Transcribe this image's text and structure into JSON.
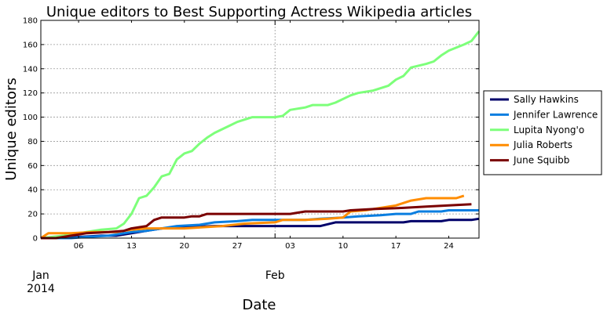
{
  "chart_data": {
    "type": "line",
    "title": "Unique editors to Best Supporting Actress Wikipedia articles",
    "xlabel": "Date",
    "ylabel": "Unique editors",
    "x_start": "2014-01-01",
    "x_end": "2014-02-28",
    "ylim": [
      0,
      180
    ],
    "yticks": [
      0,
      20,
      40,
      60,
      80,
      100,
      120,
      140,
      160,
      180
    ],
    "minor_xticks": [
      {
        "date": "2014-01-06",
        "label": "06"
      },
      {
        "date": "2014-01-13",
        "label": "13"
      },
      {
        "date": "2014-01-20",
        "label": "20"
      },
      {
        "date": "2014-01-27",
        "label": "27"
      },
      {
        "date": "2014-02-03",
        "label": "03"
      },
      {
        "date": "2014-02-10",
        "label": "10"
      },
      {
        "date": "2014-02-17",
        "label": "17"
      },
      {
        "date": "2014-02-24",
        "label": "24"
      }
    ],
    "major_xticks": [
      {
        "date": "2014-01-01",
        "label": "Jan",
        "sublabel": "2014"
      },
      {
        "date": "2014-02-01",
        "label": "Feb",
        "sublabel": ""
      }
    ],
    "grid": true,
    "legend_position": "right",
    "series": [
      {
        "name": "Sally Hawkins",
        "color": "#00006a",
        "points": [
          [
            "2014-01-01",
            0
          ],
          [
            "2014-01-04",
            0
          ],
          [
            "2014-01-06",
            1
          ],
          [
            "2014-01-09",
            2
          ],
          [
            "2014-01-11",
            2
          ],
          [
            "2014-01-13",
            4
          ],
          [
            "2014-01-15",
            6
          ],
          [
            "2014-01-17",
            8
          ],
          [
            "2014-01-20",
            9
          ],
          [
            "2014-01-24",
            10
          ],
          [
            "2014-01-28",
            10
          ],
          [
            "2014-02-01",
            10
          ],
          [
            "2014-02-04",
            10
          ],
          [
            "2014-02-07",
            10
          ],
          [
            "2014-02-09",
            13
          ],
          [
            "2014-02-12",
            13
          ],
          [
            "2014-02-15",
            13
          ],
          [
            "2014-02-18",
            13
          ],
          [
            "2014-02-19",
            14
          ],
          [
            "2014-02-23",
            14
          ],
          [
            "2014-02-24",
            15
          ],
          [
            "2014-02-27",
            15
          ],
          [
            "2014-02-28",
            16
          ]
        ]
      },
      {
        "name": "Jennifer Lawrence",
        "color": "#0a7ee0",
        "points": [
          [
            "2014-01-01",
            0
          ],
          [
            "2014-01-05",
            0
          ],
          [
            "2014-01-07",
            1
          ],
          [
            "2014-01-10",
            2
          ],
          [
            "2014-01-13",
            5
          ],
          [
            "2014-01-15",
            6
          ],
          [
            "2014-01-17",
            8
          ],
          [
            "2014-01-19",
            10
          ],
          [
            "2014-01-22",
            11
          ],
          [
            "2014-01-24",
            13
          ],
          [
            "2014-01-27",
            14
          ],
          [
            "2014-01-29",
            15
          ],
          [
            "2014-02-01",
            15
          ],
          [
            "2014-02-05",
            15
          ],
          [
            "2014-02-07",
            16
          ],
          [
            "2014-02-10",
            17
          ],
          [
            "2014-02-12",
            18
          ],
          [
            "2014-02-15",
            19
          ],
          [
            "2014-02-17",
            20
          ],
          [
            "2014-02-19",
            20
          ],
          [
            "2014-02-20",
            22
          ],
          [
            "2014-02-23",
            22
          ],
          [
            "2014-02-24",
            23
          ],
          [
            "2014-02-28",
            23
          ]
        ]
      },
      {
        "name": "Lupita Nyong'o",
        "color": "#7dff7a",
        "points": [
          [
            "2014-01-01",
            0
          ],
          [
            "2014-01-04",
            2
          ],
          [
            "2014-01-06",
            4
          ],
          [
            "2014-01-08",
            6
          ],
          [
            "2014-01-09",
            7
          ],
          [
            "2014-01-11",
            8
          ],
          [
            "2014-01-12",
            12
          ],
          [
            "2014-01-13",
            20
          ],
          [
            "2014-01-14",
            33
          ],
          [
            "2014-01-15",
            35
          ],
          [
            "2014-01-16",
            42
          ],
          [
            "2014-01-17",
            51
          ],
          [
            "2014-01-18",
            53
          ],
          [
            "2014-01-19",
            65
          ],
          [
            "2014-01-20",
            70
          ],
          [
            "2014-01-21",
            72
          ],
          [
            "2014-01-22",
            78
          ],
          [
            "2014-01-23",
            83
          ],
          [
            "2014-01-24",
            87
          ],
          [
            "2014-01-25",
            90
          ],
          [
            "2014-01-26",
            93
          ],
          [
            "2014-01-27",
            96
          ],
          [
            "2014-01-28",
            98
          ],
          [
            "2014-01-29",
            100
          ],
          [
            "2014-02-01",
            100
          ],
          [
            "2014-02-02",
            101
          ],
          [
            "2014-02-03",
            106
          ],
          [
            "2014-02-05",
            108
          ],
          [
            "2014-02-06",
            110
          ],
          [
            "2014-02-08",
            110
          ],
          [
            "2014-02-09",
            112
          ],
          [
            "2014-02-11",
            118
          ],
          [
            "2014-02-12",
            120
          ],
          [
            "2014-02-14",
            122
          ],
          [
            "2014-02-16",
            126
          ],
          [
            "2014-02-17",
            131
          ],
          [
            "2014-02-18",
            134
          ],
          [
            "2014-02-19",
            141
          ],
          [
            "2014-02-21",
            144
          ],
          [
            "2014-02-22",
            146
          ],
          [
            "2014-02-23",
            151
          ],
          [
            "2014-02-24",
            155
          ],
          [
            "2014-02-26",
            160
          ],
          [
            "2014-02-27",
            163
          ],
          [
            "2014-02-28",
            171
          ]
        ]
      },
      {
        "name": "Julia Roberts",
        "color": "#ff8c00",
        "points": [
          [
            "2014-01-01",
            0
          ],
          [
            "2014-01-02",
            4
          ],
          [
            "2014-01-05",
            4
          ],
          [
            "2014-01-08",
            5
          ],
          [
            "2014-01-11",
            5
          ],
          [
            "2014-01-13",
            7
          ],
          [
            "2014-01-15",
            8
          ],
          [
            "2014-01-20",
            8
          ],
          [
            "2014-01-25",
            10
          ],
          [
            "2014-01-28",
            12
          ],
          [
            "2014-02-01",
            13
          ],
          [
            "2014-02-02",
            15
          ],
          [
            "2014-02-05",
            15
          ],
          [
            "2014-02-08",
            16
          ],
          [
            "2014-02-10",
            17
          ],
          [
            "2014-02-11",
            22
          ],
          [
            "2014-02-13",
            23
          ],
          [
            "2014-02-15",
            25
          ],
          [
            "2014-02-17",
            27
          ],
          [
            "2014-02-18",
            29
          ],
          [
            "2014-02-19",
            31
          ],
          [
            "2014-02-21",
            33
          ],
          [
            "2014-02-25",
            33
          ],
          [
            "2014-02-26",
            35
          ]
        ]
      },
      {
        "name": "June Squibb",
        "color": "#7a0000",
        "points": [
          [
            "2014-01-01",
            0
          ],
          [
            "2014-01-03",
            0
          ],
          [
            "2014-01-05",
            2
          ],
          [
            "2014-01-07",
            4
          ],
          [
            "2014-01-10",
            5
          ],
          [
            "2014-01-12",
            6
          ],
          [
            "2014-01-13",
            8
          ],
          [
            "2014-01-15",
            10
          ],
          [
            "2014-01-16",
            15
          ],
          [
            "2014-01-17",
            17
          ],
          [
            "2014-01-20",
            17
          ],
          [
            "2014-01-21",
            18
          ],
          [
            "2014-01-22",
            18
          ],
          [
            "2014-01-23",
            20
          ],
          [
            "2014-02-03",
            20
          ],
          [
            "2014-02-05",
            22
          ],
          [
            "2014-02-10",
            22
          ],
          [
            "2014-02-11",
            23
          ],
          [
            "2014-02-14",
            24
          ],
          [
            "2014-02-18",
            25
          ],
          [
            "2014-02-21",
            26
          ],
          [
            "2014-02-24",
            27
          ],
          [
            "2014-02-27",
            28
          ]
        ]
      }
    ]
  }
}
